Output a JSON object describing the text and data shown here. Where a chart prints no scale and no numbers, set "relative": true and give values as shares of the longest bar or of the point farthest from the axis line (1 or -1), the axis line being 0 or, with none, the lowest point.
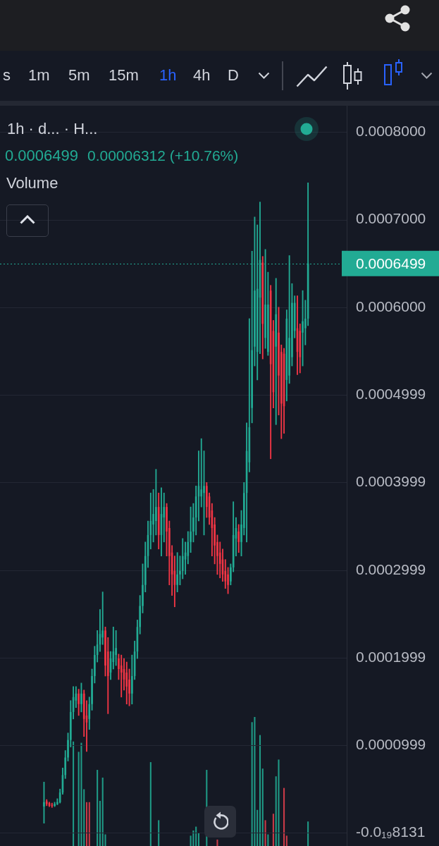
{
  "chart_data": [
    {
      "type": "candlestick",
      "categories": [
        null,
        null,
        null,
        null,
        null,
        null,
        null,
        null,
        null,
        null,
        null,
        null,
        null,
        null,
        null,
        null,
        null,
        null,
        null,
        null,
        null,
        null,
        null,
        null,
        null,
        null,
        null,
        null,
        null,
        null,
        null,
        null,
        null,
        null,
        null,
        null,
        null,
        null,
        null,
        null,
        null,
        null,
        null,
        null,
        null,
        null,
        null,
        null,
        null,
        null,
        null,
        null,
        null,
        null,
        null,
        null,
        null,
        null,
        null,
        null,
        null,
        null,
        null,
        null,
        null,
        null,
        null,
        null,
        null,
        null,
        null,
        null,
        null,
        null,
        null,
        null,
        null,
        null,
        null,
        null,
        null,
        null,
        null,
        null,
        null,
        null,
        null,
        null,
        null,
        null,
        null,
        null,
        null,
        null,
        null,
        null,
        null,
        null,
        null,
        null,
        null,
        null,
        null,
        null,
        null,
        null,
        null,
        null,
        null,
        null,
        null,
        null,
        null,
        null,
        null,
        null,
        null,
        null,
        null,
        null,
        null,
        null,
        null,
        null,
        null,
        null,
        null,
        null,
        null,
        null
      ],
      "ohlc": [
        null,
        null,
        null,
        null,
        null,
        null,
        null,
        null,
        null,
        null,
        null,
        null,
        null,
        null,
        null,
        null,
        [
          3e-05,
          5.8e-05,
          1.1e-05,
          3.5e-05
        ],
        [
          3.6e-05,
          3.8e-05,
          3.1e-05,
          3.3e-05
        ],
        [
          3.4e-05,
          3.5e-05,
          3e-05,
          3.1e-05
        ],
        [
          3.2e-05,
          3.4e-05,
          2.9e-05,
          3.1e-05
        ],
        [
          3.1e-05,
          3.5e-05,
          3e-05,
          3.3e-05
        ],
        [
          3.3e-05,
          3.9e-05,
          3.2e-05,
          3.5e-05
        ],
        [
          3.5e-05,
          5e-05,
          3.4e-05,
          4.6e-05
        ],
        [
          4.6e-05,
          7.4e-05,
          4.4e-05,
          6.6e-05
        ],
        [
          6.6e-05,
          9.4e-05,
          6.2e-05,
          8.6e-05
        ],
        [
          8.6e-05,
          0.000114,
          8.2e-05,
          0.000106
        ],
        [
          0.000106,
          0.000151,
          9.8e-05,
          0.000138
        ],
        [
          0.000138,
          0.000167,
          0.00013,
          0.000155
        ],
        [
          0.000151,
          0.000167,
          0.000143,
          0.000159
        ],
        [
          0.000159,
          0.000164,
          0.000134,
          0.000147
        ],
        [
          0.000147,
          0.000171,
          0.000138,
          0.000159
        ],
        [
          0.000159,
          0.000163,
          0.00011,
          0.00013
        ],
        [
          0.000134,
          0.000151,
          9.3e-05,
          0.000126
        ],
        [
          0.00013,
          0.000155,
          0.000118,
          0.000147
        ],
        [
          0.000147,
          0.000187,
          0.00014,
          0.000179
        ],
        [
          0.000179,
          0.000213,
          0.000171,
          0.000203
        ],
        [
          0.000203,
          0.000231,
          0.000195,
          0.000215
        ],
        [
          0.000215,
          0.000255,
          0.000207,
          0.000227
        ],
        [
          0.000223,
          0.000275,
          0.000215,
          0.000231
        ],
        [
          0.000231,
          0.000235,
          0.000179,
          0.000191
        ],
        [
          0.000207,
          0.000223,
          0.000136,
          0.000179
        ],
        [
          0.000183,
          0.000207,
          0.000175,
          0.000199
        ],
        [
          0.000195,
          0.000235,
          0.000187,
          0.000207
        ],
        [
          0.000203,
          0.000231,
          0.000191,
          0.000211
        ],
        [
          0.000199,
          0.000204,
          0.000175,
          0.000187
        ],
        [
          0.000191,
          0.000203,
          0.000155,
          0.000183
        ],
        [
          0.000187,
          0.000199,
          0.000163,
          0.000175
        ],
        [
          0.000183,
          0.000195,
          0.000147,
          0.000167
        ],
        [
          0.000175,
          0.000187,
          0.000145,
          0.000159
        ],
        [
          0.000159,
          0.000203,
          0.000147,
          0.000179
        ],
        [
          0.000179,
          0.000219,
          0.000175,
          0.000207
        ],
        [
          0.000207,
          0.000243,
          0.000199,
          0.000235
        ],
        [
          0.000235,
          0.000271,
          0.000227,
          0.000259
        ],
        [
          0.000259,
          0.000307,
          0.000251,
          0.000283
        ],
        [
          0.000283,
          0.000332,
          0.000275,
          0.000316
        ],
        [
          0.000316,
          0.000356,
          0.000303,
          0.00034
        ],
        [
          0.00034,
          0.000388,
          0.000324,
          0.000356
        ],
        [
          0.000352,
          0.000392,
          0.000332,
          0.000364
        ],
        [
          0.000356,
          0.000415,
          0.00034,
          0.000372
        ],
        [
          0.000372,
          0.000388,
          0.000324,
          0.00034
        ],
        [
          0.00034,
          0.000394,
          0.000316,
          0.000364
        ],
        [
          0.00036,
          0.000388,
          0.000332,
          0.000372
        ],
        [
          0.000372,
          0.000376,
          0.000316,
          0.000344
        ],
        [
          0.000348,
          0.000356,
          0.000283,
          0.000316
        ],
        [
          0.00032,
          0.000328,
          0.000271,
          0.000295
        ],
        [
          0.000299,
          0.000316,
          0.000258,
          0.000283
        ],
        [
          0.000283,
          0.00032,
          0.000275,
          0.000295
        ],
        [
          0.000295,
          0.000316,
          0.000283,
          0.000299
        ],
        [
          0.000299,
          0.000336,
          0.00029,
          0.000316
        ],
        [
          0.000312,
          0.000332,
          0.000295,
          0.00032
        ],
        [
          0.000316,
          0.000344,
          0.000307,
          0.000332
        ],
        [
          0.000332,
          0.000372,
          0.00032,
          0.000344
        ],
        [
          0.000344,
          0.000376,
          0.000332,
          0.00036
        ],
        [
          0.00036,
          0.000396,
          0.00034,
          0.000384
        ],
        [
          0.000384,
          0.000436,
          0.000356,
          0.000396
        ],
        [
          0.000384,
          0.00045,
          0.000372,
          0.000392
        ],
        [
          0.000388,
          0.000436,
          0.00034,
          0.000396
        ],
        [
          0.000396,
          0.0004,
          0.00036,
          0.000372
        ],
        [
          0.000384,
          0.000388,
          0.000352,
          0.00036
        ],
        [
          0.000368,
          0.000376,
          0.000316,
          0.000348
        ],
        [
          0.000352,
          0.00036,
          0.000307,
          0.000328
        ],
        [
          0.000332,
          0.00034,
          0.000295,
          0.000316
        ],
        [
          0.00032,
          0.000332,
          0.000291,
          0.000307
        ],
        [
          0.000312,
          0.000324,
          0.000287,
          0.000295
        ],
        [
          0.000299,
          0.000312,
          0.000279,
          0.000287
        ],
        [
          0.000295,
          0.000303,
          0.000273,
          0.000283
        ],
        [
          0.000287,
          0.000307,
          0.000283,
          0.000303
        ],
        [
          0.000303,
          0.000378,
          0.000298,
          0.00034
        ],
        [
          0.000336,
          0.00036,
          0.000316,
          0.000348
        ],
        [
          0.000344,
          0.000352,
          0.00032,
          0.000332
        ],
        [
          0.000332,
          0.000368,
          0.000316,
          0.000352
        ],
        [
          0.000348,
          0.0004,
          0.00034,
          0.000388
        ],
        [
          0.000388,
          0.000468,
          0.000332,
          0.000436
        ],
        [
          0.000423,
          0.000587,
          0.000412,
          0.000463
        ],
        [
          0.000485,
          0.000664,
          0.000468,
          0.000551
        ],
        [
          0.000555,
          0.000703,
          0.000533,
          0.000619
        ],
        [
          0.000549,
          0.000694,
          0.000517,
          0.000621
        ],
        [
          0.000611,
          0.00072,
          0.000547,
          0.000654
        ],
        [
          0.000651,
          0.000658,
          0.000541,
          0.000581
        ],
        [
          0.000565,
          0.000666,
          0.000553,
          0.000603
        ],
        [
          0.000549,
          0.00064,
          0.000545,
          0.000603
        ],
        [
          0.000619,
          0.000625,
          0.000427,
          0.000535
        ],
        [
          0.000573,
          0.000585,
          0.000485,
          0.000503
        ],
        [
          0.000555,
          0.000633,
          0.000466,
          0.000592
        ],
        [
          0.000571,
          0.0006,
          0.000477,
          0.000522
        ],
        [
          0.000549,
          0.000557,
          0.00045,
          0.00049
        ],
        [
          0.000547,
          0.000553,
          0.000456,
          0.000487
        ],
        [
          0.000517,
          0.000597,
          0.000493,
          0.000587
        ],
        [
          0.000522,
          0.000659,
          0.000513,
          0.000565
        ],
        [
          0.000543,
          0.000627,
          0.000533,
          0.000605
        ],
        [
          0.000573,
          0.000613,
          0.000565,
          0.000605
        ],
        [
          0.000576,
          0.000613,
          0.000523,
          0.000549
        ],
        [
          0.000573,
          0.000581,
          0.000525,
          0.000543
        ],
        [
          0.000571,
          0.000619,
          0.000533,
          0.000584
        ],
        [
          0.000576,
          0.000608,
          0.000557,
          0.000587
        ],
        [
          0.000587,
          0.000742,
          0.000579,
          0.0006499
        ],
        null,
        null,
        null,
        null,
        null,
        null,
        null,
        null,
        null,
        null,
        null,
        null,
        null,
        null
      ],
      "colors": [
        null,
        null,
        null,
        null,
        null,
        null,
        null,
        null,
        null,
        null,
        null,
        null,
        null,
        null,
        null,
        null,
        "#22ab94",
        "#f23645",
        "#f23645",
        "#f23645",
        "#22ab94",
        "#22ab94",
        "#22ab94",
        "#22ab94",
        "#22ab94",
        "#22ab94",
        "#22ab94",
        "#22ab94",
        "#22ab94",
        "#f23645",
        "#22ab94",
        "#f23645",
        "#f23645",
        "#22ab94",
        "#22ab94",
        "#22ab94",
        "#22ab94",
        "#22ab94",
        "#22ab94",
        "#f23645",
        "#f23645",
        "#22ab94",
        "#22ab94",
        "#22ab94",
        "#f23645",
        "#f23645",
        "#f23645",
        "#f23645",
        "#f23645",
        "#22ab94",
        "#22ab94",
        "#22ab94",
        "#22ab94",
        "#22ab94",
        "#22ab94",
        "#22ab94",
        "#22ab94",
        "#22ab94",
        "#22ab94",
        "#f23645",
        "#22ab94",
        "#22ab94",
        "#f23645",
        "#f23645",
        "#f23645",
        "#f23645",
        "#22ab94",
        "#22ab94",
        "#22ab94",
        "#22ab94",
        "#22ab94",
        "#22ab94",
        "#22ab94",
        "#22ab94",
        "#22ab94",
        "#22ab94",
        "#22ab94",
        "#f23645",
        "#f23645",
        "#f23645",
        "#f23645",
        "#f23645",
        "#f23645",
        "#f23645",
        "#f23645",
        "#f23645",
        "#22ab94",
        "#22ab94",
        "#22ab94",
        "#f23645",
        "#22ab94",
        "#22ab94",
        "#22ab94",
        "#22ab94",
        "#22ab94",
        "#22ab94",
        "#22ab94",
        "#22ab94",
        "#f23645",
        "#22ab94",
        "#22ab94",
        "#f23645",
        "#f23645",
        "#22ab94",
        "#f23645",
        "#f23645",
        "#f23645",
        "#22ab94",
        "#22ab94",
        "#22ab94",
        "#22ab94",
        "#f23645",
        "#f23645",
        "#22ab94",
        "#22ab94",
        "#22ab94",
        null,
        null,
        null,
        null,
        null,
        null,
        null,
        null,
        null,
        null,
        null,
        null,
        null,
        null
      ],
      "ylim": [
        -1.5e-05,
        0.00083
      ],
      "yticks": [
        {
          "value": 0,
          "label": "-0.0₁₉8131"
        },
        {
          "value": 9.99e-05,
          "label": "0.0000999"
        },
        {
          "value": 0.0001999,
          "label": "0.0001999"
        },
        {
          "value": 0.0002999,
          "label": "0.0002999"
        },
        {
          "value": 0.0003999,
          "label": "0.0003999"
        },
        {
          "value": 0.0004999,
          "label": "0.0004999"
        },
        {
          "value": 0.0006,
          "label": "0.0006000"
        },
        {
          "value": 0.0007,
          "label": "0.0007000"
        },
        {
          "value": 0.0008,
          "label": "0.0008000"
        }
      ],
      "grid": "y",
      "tick_labels": "y",
      "ref_lines": [
        {
          "axis": "y",
          "value": 0.0006499,
          "label": "0.0006499",
          "color": "#22ab94",
          "line_style": "dotted"
        }
      ],
      "annotations": [
        "s",
        "1m",
        "5m",
        "15m",
        "1h",
        "4h",
        "D",
        "1h · d... · H...",
        "0.0006499",
        "0.00006312 (+10.76%)"
      ]
    },
    {
      "type": "bar",
      "title": "Volume",
      "categories": [
        null,
        null,
        null,
        null,
        null,
        null,
        null,
        null,
        null,
        null,
        null,
        null,
        null,
        null,
        null,
        null,
        null,
        null,
        null,
        null,
        null,
        null,
        null,
        null,
        null,
        null,
        null,
        null,
        null,
        null,
        null,
        null,
        null,
        null,
        null,
        null,
        null,
        null,
        null,
        null,
        null,
        null,
        null,
        null,
        null,
        null,
        null,
        null,
        null,
        null,
        null,
        null,
        null,
        null,
        null,
        null,
        null,
        null,
        null,
        null,
        null,
        null,
        null,
        null,
        null,
        null,
        null,
        null,
        null,
        null,
        null,
        null,
        null,
        null,
        null,
        null,
        null,
        null,
        null,
        null,
        null,
        null,
        null,
        null,
        null,
        null,
        null,
        null,
        null,
        null,
        null,
        null,
        null,
        null,
        null,
        null,
        null,
        null,
        null,
        null,
        null,
        null,
        null,
        null,
        null,
        null,
        null,
        null,
        null,
        null,
        null,
        null,
        null,
        null,
        null,
        null,
        null,
        null,
        null,
        null,
        null,
        null,
        null,
        null,
        null,
        null,
        null,
        null,
        null,
        null
      ],
      "values": [
        null,
        null,
        null,
        null,
        null,
        null,
        null,
        null,
        null,
        null,
        null,
        null,
        null,
        null,
        null,
        null,
        null,
        null,
        null,
        null,
        null,
        null,
        null,
        null,
        null,
        null,
        null,
        0.81,
        null,
        0.73,
        0.8,
        0.44,
        0.34,
        0.34,
        null,
        null,
        0.59,
        0.35,
        0.53,
        0.09,
        null,
        null,
        null,
        null,
        null,
        null,
        null,
        null,
        null,
        null,
        null,
        null,
        null,
        null,
        null,
        null,
        0.65,
        null,
        null,
        0.2,
        null,
        null,
        null,
        null,
        null,
        null,
        null,
        null,
        null,
        null,
        null,
        0.08,
        0.12,
        0.15,
        0.1,
        null,
        null,
        0.59,
        null,
        null,
        null,
        0.05,
        null,
        null,
        null,
        null,
        null,
        null,
        null,
        null,
        null,
        null,
        null,
        null,
        0.96,
        1,
        0.28,
        0.86,
        0.6,
        0.2,
        0.09,
        null,
        0.25,
        0.54,
        0.67,
        null,
        0.45,
        0.08,
        null,
        null,
        null,
        null,
        null,
        null,
        null,
        0.19,
        null,
        null,
        null,
        null,
        null,
        null,
        null,
        null,
        null,
        null,
        null,
        null,
        null,
        null
      ],
      "colors": [
        null,
        null,
        null,
        null,
        null,
        null,
        null,
        null,
        null,
        null,
        null,
        null,
        null,
        null,
        null,
        null,
        "#1f9a86",
        "#1f9a86",
        "#1f9a86",
        "#1f9a86",
        "#1f9a86",
        "#1f9a86",
        "#1f9a86",
        "#1f9a86",
        "#1f9a86",
        "#1f9a86",
        "#1f9a86",
        "#1f9a86",
        "#1f9a86",
        "#1f9a86",
        "#1f9a86",
        "#1f9a86",
        "#c93a47",
        "#c93a47",
        "#1f9a86",
        "#1f9a86",
        "#1f9a86",
        "#1f9a86",
        "#1f9a86",
        "#1f9a86",
        "#1f9a86",
        "#1f9a86",
        "#1f9a86",
        "#1f9a86",
        "#1f9a86",
        "#1f9a86",
        "#1f9a86",
        "#1f9a86",
        "#1f9a86",
        "#1f9a86",
        "#1f9a86",
        "#1f9a86",
        "#1f9a86",
        "#1f9a86",
        "#1f9a86",
        "#1f9a86",
        "#1f9a86",
        "#1f9a86",
        "#1f9a86",
        "#1f9a86",
        "#1f9a86",
        "#1f9a86",
        "#1f9a86",
        "#1f9a86",
        "#1f9a86",
        "#1f9a86",
        "#1f9a86",
        "#1f9a86",
        "#1f9a86",
        "#1f9a86",
        "#1f9a86",
        "#1f9a86",
        "#1f9a86",
        "#1f9a86",
        "#1f9a86",
        "#1f9a86",
        "#1f9a86",
        "#1f9a86",
        "#1f9a86",
        "#1f9a86",
        "#1f9a86",
        "#c93a47",
        "#1f9a86",
        "#1f9a86",
        "#1f9a86",
        "#1f9a86",
        "#1f9a86",
        "#1f9a86",
        "#1f9a86",
        "#1f9a86",
        "#1f9a86",
        "#1f9a86",
        "#1f9a86",
        "#1f9a86",
        "#1f9a86",
        "#1f9a86",
        "#1f9a86",
        "#1f9a86",
        "#1f9a86",
        "#c93a47",
        "#1f9a86",
        "#1f9a86",
        "#c93a47",
        "#1f9a86",
        "#1f9a86",
        "#1f9a86",
        "#c93a47",
        "#c93a47",
        "#1f9a86",
        "#1f9a86",
        "#1f9a86",
        "#1f9a86",
        "#1f9a86",
        "#1f9a86",
        "#1f9a86",
        "#1f9a86",
        null,
        null,
        null,
        null,
        null,
        null,
        null,
        null,
        null,
        null,
        null,
        null,
        null,
        null
      ],
      "relative": true
    }
  ]
}
